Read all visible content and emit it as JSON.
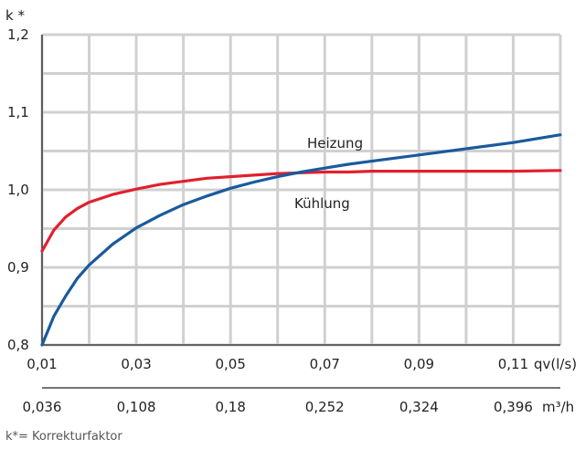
{
  "chart_data": {
    "type": "line",
    "y_axis_title": "k *",
    "x_unit_primary": "qv(l/s)",
    "x_unit_secondary": "m³/h",
    "y_ticks": [
      "1,2",
      "1,1",
      "1,0",
      "0,9",
      "0,8"
    ],
    "x_ticks_primary": [
      "0,01",
      "0,03",
      "0,05",
      "0,07",
      "0,09",
      "0,11"
    ],
    "x_ticks_secondary": [
      "0,036",
      "0,108",
      "0,18",
      "0,252",
      "0,324",
      "0,396"
    ],
    "xlim": [
      0.01,
      0.12
    ],
    "ylim": [
      0.8,
      1.2
    ],
    "grid": true,
    "series": [
      {
        "name": "Heizung",
        "color": "#e0202f",
        "x": [
          0.01,
          0.0125,
          0.015,
          0.0175,
          0.02,
          0.025,
          0.03,
          0.035,
          0.04,
          0.045,
          0.05,
          0.055,
          0.06,
          0.065,
          0.07,
          0.075,
          0.08,
          0.09,
          0.1,
          0.11,
          0.12
        ],
        "y": [
          0.921,
          0.948,
          0.965,
          0.976,
          0.984,
          0.994,
          1.001,
          1.007,
          1.011,
          1.015,
          1.017,
          1.019,
          1.021,
          1.022,
          1.023,
          1.023,
          1.024,
          1.024,
          1.024,
          1.024,
          1.025
        ]
      },
      {
        "name": "Kühlung",
        "color": "#1a5a9c",
        "x": [
          0.01,
          0.0125,
          0.015,
          0.0175,
          0.02,
          0.025,
          0.03,
          0.035,
          0.04,
          0.045,
          0.05,
          0.055,
          0.06,
          0.065,
          0.07,
          0.075,
          0.08,
          0.085,
          0.09,
          0.1,
          0.11,
          0.12
        ],
        "y": [
          0.8,
          0.837,
          0.863,
          0.886,
          0.903,
          0.93,
          0.951,
          0.967,
          0.981,
          0.992,
          1.002,
          1.01,
          1.017,
          1.023,
          1.028,
          1.033,
          1.037,
          1.041,
          1.045,
          1.053,
          1.061,
          1.071
        ]
      }
    ],
    "footnote": "k*= Korrekturfaktor"
  }
}
